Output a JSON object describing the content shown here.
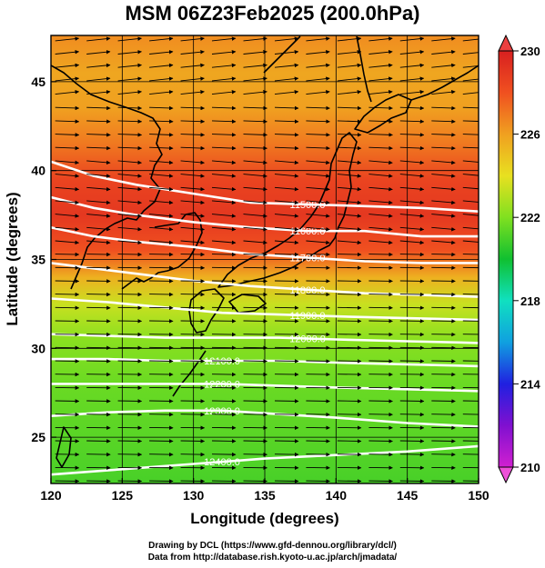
{
  "title": "MSM 06Z23Feb2025 (200.0hPa)",
  "credits": {
    "line1": "Drawing by DCL (https://www.gfd-dennou.org/library/dcl/)",
    "line2": "Data from http://database.rish.kyoto-u.ac.jp/arch/jmadata/"
  },
  "chart_data": {
    "type": "heatmap",
    "title": "MSM 06Z23Feb2025 (200.0hPa)",
    "xlabel": "Longitude (degrees)",
    "ylabel": "Latitude  (degrees)",
    "xlim": [
      120,
      150
    ],
    "ylim": [
      22.4,
      47.6
    ],
    "x_ticks": [
      120,
      125,
      130,
      135,
      140,
      145,
      150
    ],
    "y_ticks": [
      25,
      30,
      35,
      40,
      45
    ],
    "colorbar": {
      "min": 210,
      "max": 230,
      "tick_labels": [
        210,
        214,
        218,
        222,
        226,
        230
      ],
      "colors": [
        "#d020d0",
        "#8010d0",
        "#2020e0",
        "#10a0e0",
        "#10e0c0",
        "#10c030",
        "#80e020",
        "#e8e020",
        "#f0a020",
        "#f05020",
        "#d82020"
      ]
    },
    "shading_field": "temperature (K)",
    "temperature_profile": [
      {
        "lat": 22.4,
        "value": 221.0
      },
      {
        "lat": 25.0,
        "value": 221.3
      },
      {
        "lat": 28.0,
        "value": 221.6
      },
      {
        "lat": 30.5,
        "value": 222.2
      },
      {
        "lat": 32.5,
        "value": 223.4
      },
      {
        "lat": 34.0,
        "value": 225.5
      },
      {
        "lat": 35.5,
        "value": 228.0
      },
      {
        "lat": 37.5,
        "value": 229.0
      },
      {
        "lat": 39.5,
        "value": 228.5
      },
      {
        "lat": 41.5,
        "value": 227.0
      },
      {
        "lat": 43.5,
        "value": 226.0
      },
      {
        "lat": 45.5,
        "value": 225.8
      },
      {
        "lat": 47.6,
        "value": 226.5
      }
    ],
    "contours": [
      {
        "label": "11500.0",
        "points": [
          [
            120,
            40.5
          ],
          [
            123,
            39.7
          ],
          [
            126,
            39.2
          ],
          [
            130,
            38.7
          ],
          [
            134,
            38.2
          ],
          [
            138,
            38.1
          ],
          [
            142,
            38.0
          ],
          [
            146,
            37.9
          ],
          [
            150,
            37.7
          ]
        ]
      },
      {
        "label": "11600.0",
        "points": [
          [
            120,
            38.5
          ],
          [
            123,
            37.9
          ],
          [
            126,
            37.5
          ],
          [
            130,
            37.1
          ],
          [
            134,
            36.8
          ],
          [
            138,
            36.6
          ],
          [
            142,
            36.6
          ],
          [
            146,
            36.3
          ],
          [
            150,
            36.3
          ]
        ]
      },
      {
        "label": "11700.0",
        "points": [
          [
            120,
            36.8
          ],
          [
            123,
            36.3
          ],
          [
            126,
            36.0
          ],
          [
            130,
            35.7
          ],
          [
            134,
            35.3
          ],
          [
            138,
            35.1
          ],
          [
            142,
            34.9
          ],
          [
            146,
            34.8
          ],
          [
            150,
            34.8
          ]
        ]
      },
      {
        "label": "11800.0",
        "points": [
          [
            120,
            34.8
          ],
          [
            123,
            34.5
          ],
          [
            126,
            34.2
          ],
          [
            130,
            33.8
          ],
          [
            134,
            33.5
          ],
          [
            138,
            33.3
          ],
          [
            142,
            33.1
          ],
          [
            146,
            33.0
          ],
          [
            150,
            32.9
          ]
        ]
      },
      {
        "label": "11900.0",
        "points": [
          [
            120,
            32.8
          ],
          [
            124,
            32.6
          ],
          [
            128,
            32.3
          ],
          [
            132,
            32.0
          ],
          [
            136,
            31.9
          ],
          [
            140,
            31.8
          ],
          [
            145,
            31.7
          ],
          [
            150,
            31.6
          ]
        ]
      },
      {
        "label": "12000.0",
        "points": [
          [
            120,
            30.8
          ],
          [
            124,
            30.7
          ],
          [
            128,
            30.6
          ],
          [
            132,
            30.6
          ],
          [
            136,
            30.6
          ],
          [
            140,
            30.5
          ],
          [
            145,
            30.4
          ],
          [
            150,
            30.3
          ]
        ]
      },
      {
        "label": "12100.0",
        "points": [
          [
            120,
            29.4
          ],
          [
            124,
            29.4
          ],
          [
            128,
            29.3
          ],
          [
            132,
            29.3
          ],
          [
            136,
            29.3
          ],
          [
            140,
            29.2
          ],
          [
            145,
            29.1
          ],
          [
            150,
            29.0
          ]
        ]
      },
      {
        "label": "12200.0",
        "points": [
          [
            120,
            28.0
          ],
          [
            124,
            28.0
          ],
          [
            128,
            28.0
          ],
          [
            132,
            28.0
          ],
          [
            136,
            27.9
          ],
          [
            140,
            27.8
          ],
          [
            145,
            27.7
          ],
          [
            150,
            27.6
          ]
        ]
      },
      {
        "label": "12300.0",
        "points": [
          [
            120,
            26.2
          ],
          [
            124,
            26.4
          ],
          [
            128,
            26.5
          ],
          [
            132,
            26.5
          ],
          [
            136,
            26.3
          ],
          [
            140,
            26.1
          ],
          [
            145,
            25.8
          ],
          [
            150,
            25.6
          ]
        ]
      },
      {
        "label": "12400.0",
        "points": [
          [
            120,
            22.9
          ],
          [
            125,
            23.2
          ],
          [
            130,
            23.5
          ],
          [
            135,
            23.8
          ],
          [
            140,
            24.0
          ],
          [
            145,
            24.2
          ],
          [
            150,
            24.5
          ]
        ]
      }
    ],
    "wind_vectors": "dense field of eastward (westerly) arrows over the whole domain, slightly north-eastward in the north and slightly south-eastward around 36-44N",
    "grid": true
  }
}
